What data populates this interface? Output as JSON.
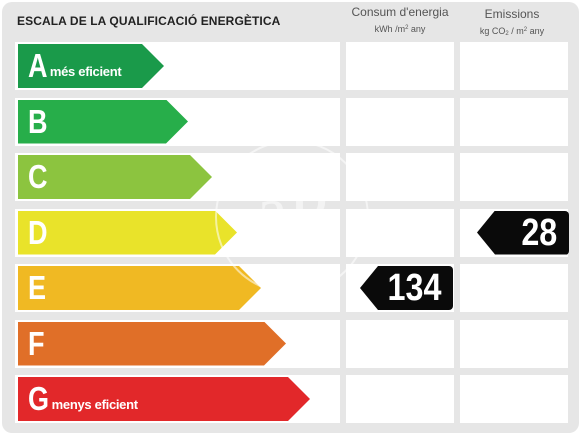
{
  "title": "ESCALA DE LA QUALIFICACIÓ ENERGÈTICA",
  "columns": {
    "consumption": {
      "label": "Consum d'energia",
      "unit_main": "kWh /m",
      "unit_sup": "2",
      "unit_tail": " any"
    },
    "emissions": {
      "label": "Emissions",
      "unit_main": "kg CO",
      "unit_sub": "2",
      "unit_mid": " / m",
      "unit_sup": "2",
      "unit_tail": " any"
    }
  },
  "classes": [
    {
      "letter": "A",
      "note": "més eficient",
      "color": "#1a9a4a"
    },
    {
      "letter": "B",
      "note": "",
      "color": "#27ae4a"
    },
    {
      "letter": "C",
      "note": "",
      "color": "#8cc43f"
    },
    {
      "letter": "D",
      "note": "",
      "color": "#e9e32a"
    },
    {
      "letter": "E",
      "note": "",
      "color": "#f0b923"
    },
    {
      "letter": "F",
      "note": "",
      "color": "#e06f28"
    },
    {
      "letter": "G",
      "note": "menys eficient",
      "color": "#e2282a"
    }
  ],
  "ratings": {
    "consumption": {
      "class": "E",
      "value": "134"
    },
    "emissions": {
      "class": "D",
      "value": "28"
    }
  },
  "watermark": "aP"
}
